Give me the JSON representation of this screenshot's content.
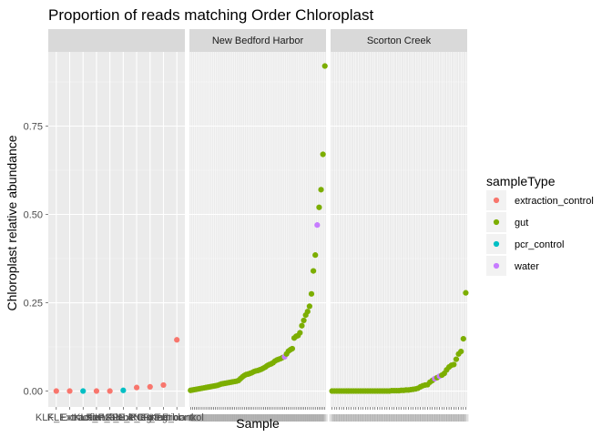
{
  "chart_data": {
    "type": "scatter",
    "title": "Proportion of reads matching Order Chloroplast",
    "xlabel": "Sample",
    "ylabel": "Chloroplast relative abundance",
    "ylim": [
      -0.045,
      0.96
    ],
    "yticks": [
      0.0,
      0.25,
      0.5,
      0.75
    ],
    "ytick_labels": [
      "0.00",
      "0.25",
      "0.50",
      "0.75"
    ],
    "grid": true,
    "legend": {
      "title": "sampleType",
      "position": "right",
      "entries": [
        {
          "label": "extraction_control",
          "color": "#F8766D"
        },
        {
          "label": "gut",
          "color": "#7CAE00"
        },
        {
          "label": "pcr_control",
          "color": "#00BFC4"
        },
        {
          "label": "water",
          "color": "#C77CFF"
        }
      ]
    },
    "panels": [
      {
        "strip": "",
        "x_tick_labels": [
          "KLF",
          "KLF_Extraction",
          "Extraction",
          "KLF_PCR",
          "KLF_blank",
          "KLF_ExtNeg",
          "KLF_PCRneg",
          "KLF_Extraction",
          "KLF_Extrblank",
          "KLF_control"
        ],
        "points": [
          {
            "y": 0.0,
            "type": "extraction_control"
          },
          {
            "y": 0.0,
            "type": "extraction_control"
          },
          {
            "y": 0.0,
            "type": "pcr_control"
          },
          {
            "y": 0.0,
            "type": "extraction_control"
          },
          {
            "y": 0.0,
            "type": "extraction_control"
          },
          {
            "y": 0.002,
            "type": "pcr_control"
          },
          {
            "y": 0.01,
            "type": "extraction_control"
          },
          {
            "y": 0.012,
            "type": "extraction_control"
          },
          {
            "y": 0.017,
            "type": "extraction_control"
          },
          {
            "y": 0.145,
            "type": "extraction_control"
          }
        ]
      },
      {
        "strip": "New Bedford Harbor",
        "points": [
          {
            "y": 0.002,
            "type": "gut"
          },
          {
            "y": 0.003,
            "type": "gut"
          },
          {
            "y": 0.004,
            "type": "gut"
          },
          {
            "y": 0.005,
            "type": "gut"
          },
          {
            "y": 0.006,
            "type": "gut"
          },
          {
            "y": 0.007,
            "type": "gut"
          },
          {
            "y": 0.008,
            "type": "gut"
          },
          {
            "y": 0.009,
            "type": "gut"
          },
          {
            "y": 0.01,
            "type": "gut"
          },
          {
            "y": 0.011,
            "type": "gut"
          },
          {
            "y": 0.012,
            "type": "gut"
          },
          {
            "y": 0.013,
            "type": "gut"
          },
          {
            "y": 0.014,
            "type": "gut"
          },
          {
            "y": 0.015,
            "type": "gut"
          },
          {
            "y": 0.016,
            "type": "gut"
          },
          {
            "y": 0.018,
            "type": "gut"
          },
          {
            "y": 0.02,
            "type": "gut"
          },
          {
            "y": 0.021,
            "type": "gut"
          },
          {
            "y": 0.022,
            "type": "gut"
          },
          {
            "y": 0.023,
            "type": "gut"
          },
          {
            "y": 0.024,
            "type": "gut"
          },
          {
            "y": 0.025,
            "type": "gut"
          },
          {
            "y": 0.026,
            "type": "gut"
          },
          {
            "y": 0.027,
            "type": "gut"
          },
          {
            "y": 0.028,
            "type": "gut"
          },
          {
            "y": 0.03,
            "type": "gut"
          },
          {
            "y": 0.035,
            "type": "gut"
          },
          {
            "y": 0.04,
            "type": "gut"
          },
          {
            "y": 0.044,
            "type": "gut"
          },
          {
            "y": 0.047,
            "type": "gut"
          },
          {
            "y": 0.048,
            "type": "gut"
          },
          {
            "y": 0.05,
            "type": "gut"
          },
          {
            "y": 0.052,
            "type": "gut"
          },
          {
            "y": 0.055,
            "type": "gut"
          },
          {
            "y": 0.057,
            "type": "gut"
          },
          {
            "y": 0.058,
            "type": "gut"
          },
          {
            "y": 0.06,
            "type": "gut"
          },
          {
            "y": 0.062,
            "type": "gut"
          },
          {
            "y": 0.065,
            "type": "gut"
          },
          {
            "y": 0.068,
            "type": "gut"
          },
          {
            "y": 0.072,
            "type": "gut"
          },
          {
            "y": 0.075,
            "type": "gut"
          },
          {
            "y": 0.077,
            "type": "gut"
          },
          {
            "y": 0.08,
            "type": "gut"
          },
          {
            "y": 0.085,
            "type": "gut"
          },
          {
            "y": 0.088,
            "type": "gut"
          },
          {
            "y": 0.09,
            "type": "gut"
          },
          {
            "y": 0.092,
            "type": "gut"
          },
          {
            "y": 0.095,
            "type": "gut"
          },
          {
            "y": 0.097,
            "type": "water"
          },
          {
            "y": 0.105,
            "type": "gut"
          },
          {
            "y": 0.113,
            "type": "gut"
          },
          {
            "y": 0.117,
            "type": "gut"
          },
          {
            "y": 0.12,
            "type": "gut"
          },
          {
            "y": 0.15,
            "type": "gut"
          },
          {
            "y": 0.155,
            "type": "gut"
          },
          {
            "y": 0.157,
            "type": "gut"
          },
          {
            "y": 0.165,
            "type": "gut"
          },
          {
            "y": 0.185,
            "type": "gut"
          },
          {
            "y": 0.2,
            "type": "gut"
          },
          {
            "y": 0.215,
            "type": "gut"
          },
          {
            "y": 0.225,
            "type": "gut"
          },
          {
            "y": 0.24,
            "type": "gut"
          },
          {
            "y": 0.275,
            "type": "gut"
          },
          {
            "y": 0.34,
            "type": "gut"
          },
          {
            "y": 0.385,
            "type": "gut"
          },
          {
            "y": 0.47,
            "type": "water"
          },
          {
            "y": 0.52,
            "type": "gut"
          },
          {
            "y": 0.57,
            "type": "gut"
          },
          {
            "y": 0.67,
            "type": "gut"
          },
          {
            "y": 0.92,
            "type": "gut"
          }
        ]
      },
      {
        "strip": "Scorton Creek",
        "points": [
          {
            "y": 0.0,
            "type": "gut"
          },
          {
            "y": 0.0,
            "type": "gut"
          },
          {
            "y": 0.0,
            "type": "gut"
          },
          {
            "y": 0.0,
            "type": "gut"
          },
          {
            "y": 0.0,
            "type": "gut"
          },
          {
            "y": 0.0,
            "type": "gut"
          },
          {
            "y": 0.0,
            "type": "gut"
          },
          {
            "y": 0.0,
            "type": "gut"
          },
          {
            "y": 0.0,
            "type": "gut"
          },
          {
            "y": 0.0,
            "type": "gut"
          },
          {
            "y": 0.0,
            "type": "gut"
          },
          {
            "y": 0.0,
            "type": "gut"
          },
          {
            "y": 0.0,
            "type": "gut"
          },
          {
            "y": 0.0,
            "type": "gut"
          },
          {
            "y": 0.0,
            "type": "gut"
          },
          {
            "y": 0.0,
            "type": "gut"
          },
          {
            "y": 0.0,
            "type": "gut"
          },
          {
            "y": 0.0,
            "type": "gut"
          },
          {
            "y": 0.0,
            "type": "gut"
          },
          {
            "y": 0.0,
            "type": "gut"
          },
          {
            "y": 0.0,
            "type": "gut"
          },
          {
            "y": 0.0,
            "type": "gut"
          },
          {
            "y": 0.0,
            "type": "gut"
          },
          {
            "y": 0.0,
            "type": "gut"
          },
          {
            "y": 0.0,
            "type": "gut"
          },
          {
            "y": 0.001,
            "type": "gut"
          },
          {
            "y": 0.001,
            "type": "gut"
          },
          {
            "y": 0.001,
            "type": "gut"
          },
          {
            "y": 0.001,
            "type": "gut"
          },
          {
            "y": 0.002,
            "type": "gut"
          },
          {
            "y": 0.002,
            "type": "gut"
          },
          {
            "y": 0.003,
            "type": "gut"
          },
          {
            "y": 0.003,
            "type": "gut"
          },
          {
            "y": 0.004,
            "type": "gut"
          },
          {
            "y": 0.005,
            "type": "gut"
          },
          {
            "y": 0.006,
            "type": "gut"
          },
          {
            "y": 0.008,
            "type": "gut"
          },
          {
            "y": 0.012,
            "type": "gut"
          },
          {
            "y": 0.015,
            "type": "gut"
          },
          {
            "y": 0.017,
            "type": "gut"
          },
          {
            "y": 0.018,
            "type": "gut"
          },
          {
            "y": 0.025,
            "type": "gut"
          },
          {
            "y": 0.03,
            "type": "gut"
          },
          {
            "y": 0.035,
            "type": "water"
          },
          {
            "y": 0.038,
            "type": "gut"
          },
          {
            "y": 0.042,
            "type": "water"
          },
          {
            "y": 0.045,
            "type": "gut"
          },
          {
            "y": 0.05,
            "type": "gut"
          },
          {
            "y": 0.06,
            "type": "gut"
          },
          {
            "y": 0.068,
            "type": "gut"
          },
          {
            "y": 0.073,
            "type": "gut"
          },
          {
            "y": 0.075,
            "type": "gut"
          },
          {
            "y": 0.09,
            "type": "gut"
          },
          {
            "y": 0.105,
            "type": "gut"
          },
          {
            "y": 0.112,
            "type": "gut"
          },
          {
            "y": 0.148,
            "type": "gut"
          },
          {
            "y": 0.278,
            "type": "gut"
          }
        ]
      }
    ]
  }
}
